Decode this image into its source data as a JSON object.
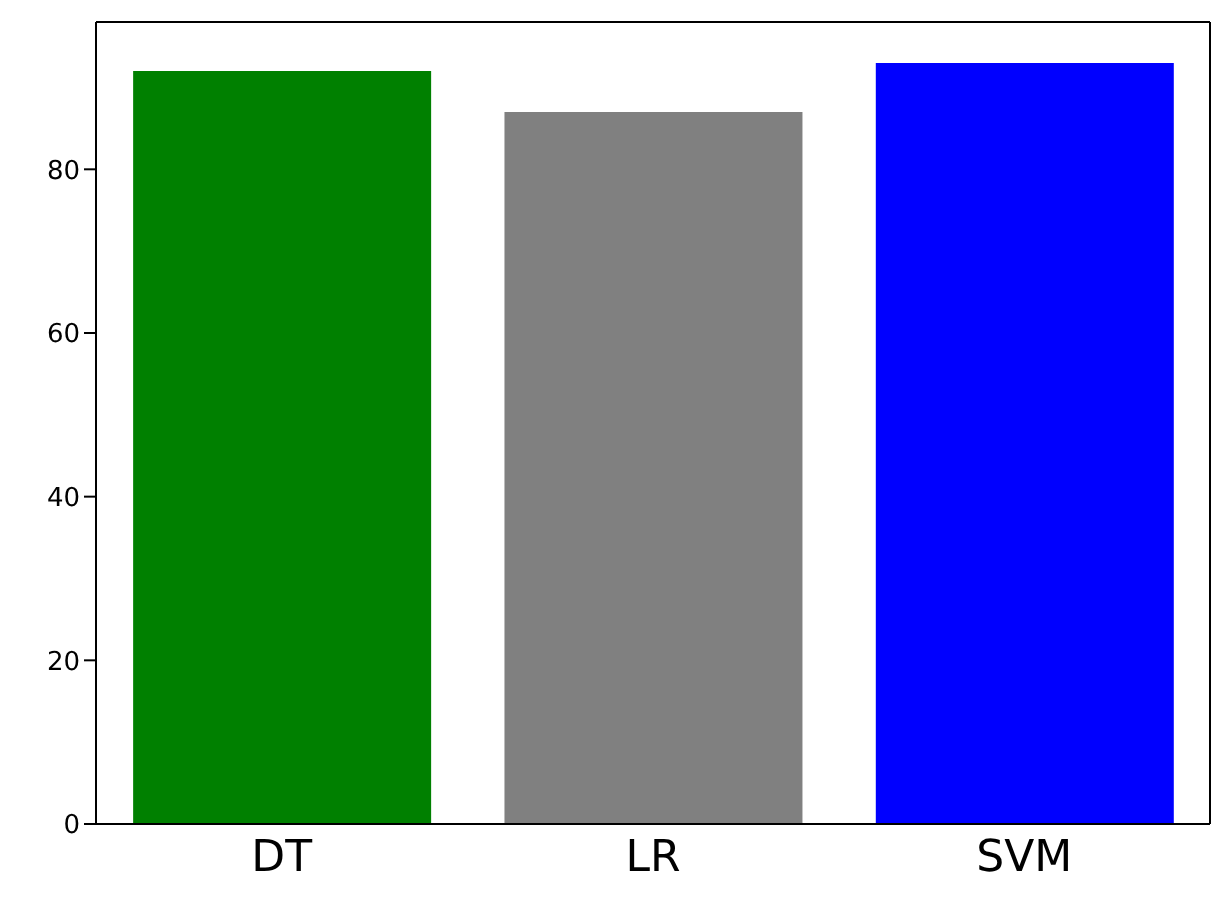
{
  "chart_data": {
    "type": "bar",
    "categories": [
      "DT",
      "LR",
      "SVM"
    ],
    "values": [
      92,
      87,
      93
    ],
    "colors": [
      "#008000",
      "#808080",
      "#0000ff"
    ],
    "ylim": [
      0,
      98
    ],
    "yticks": [
      0,
      20,
      40,
      60,
      80
    ],
    "grid": false
  }
}
